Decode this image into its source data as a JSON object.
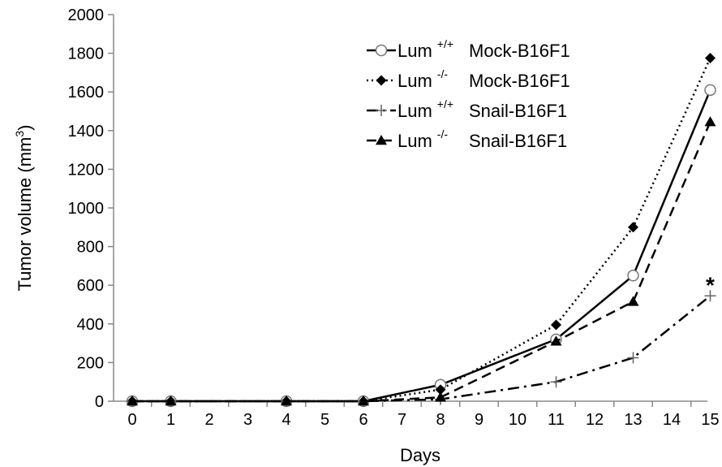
{
  "chart_data": {
    "type": "line",
    "xlabel": "Days",
    "ylabel": "Tumor volume (mm",
    "ylabel_superscript": "3",
    "ylabel_suffix": ")",
    "x_ticks": [
      "0",
      "1",
      "2",
      "3",
      "4",
      "5",
      "6",
      "7",
      "8",
      "9",
      "10",
      "11",
      "12",
      "13",
      "14",
      "15"
    ],
    "y_ticks": [
      "0",
      "200",
      "400",
      "600",
      "800",
      "1000",
      "1200",
      "1400",
      "1600",
      "1800",
      "2000"
    ],
    "ylim": [
      0,
      2000
    ],
    "grid": false,
    "legend_position": "top-right",
    "x": [
      0,
      1,
      4,
      6,
      8,
      11,
      13,
      15
    ],
    "series": [
      {
        "name_base": "Lum",
        "name_sup": "+/+",
        "name_rest": "Mock-B16F1",
        "line_style": "solid",
        "marker": "open-circle",
        "color": "#000000",
        "values": [
          0,
          0,
          0,
          0,
          85,
          320,
          650,
          1610
        ]
      },
      {
        "name_base": "Lum",
        "name_sup": "-/-",
        "name_rest": "Mock-B16F1",
        "line_style": "dotted",
        "marker": "filled-diamond",
        "color": "#000000",
        "values": [
          0,
          0,
          0,
          0,
          60,
          395,
          900,
          1775
        ]
      },
      {
        "name_base": "Lum",
        "name_sup": "+/+",
        "name_rest": "Snail-B16F1",
        "line_style": "dash-dot",
        "marker": "plus",
        "color": "#000000",
        "values": [
          0,
          0,
          0,
          0,
          10,
          100,
          225,
          545
        ]
      },
      {
        "name_base": "Lum",
        "name_sup": "-/-",
        "name_rest": "Snail-B16F1",
        "line_style": "dashed",
        "marker": "filled-triangle",
        "color": "#000000",
        "values": [
          0,
          0,
          0,
          0,
          20,
          310,
          515,
          1445
        ]
      }
    ],
    "annotation": "*"
  }
}
